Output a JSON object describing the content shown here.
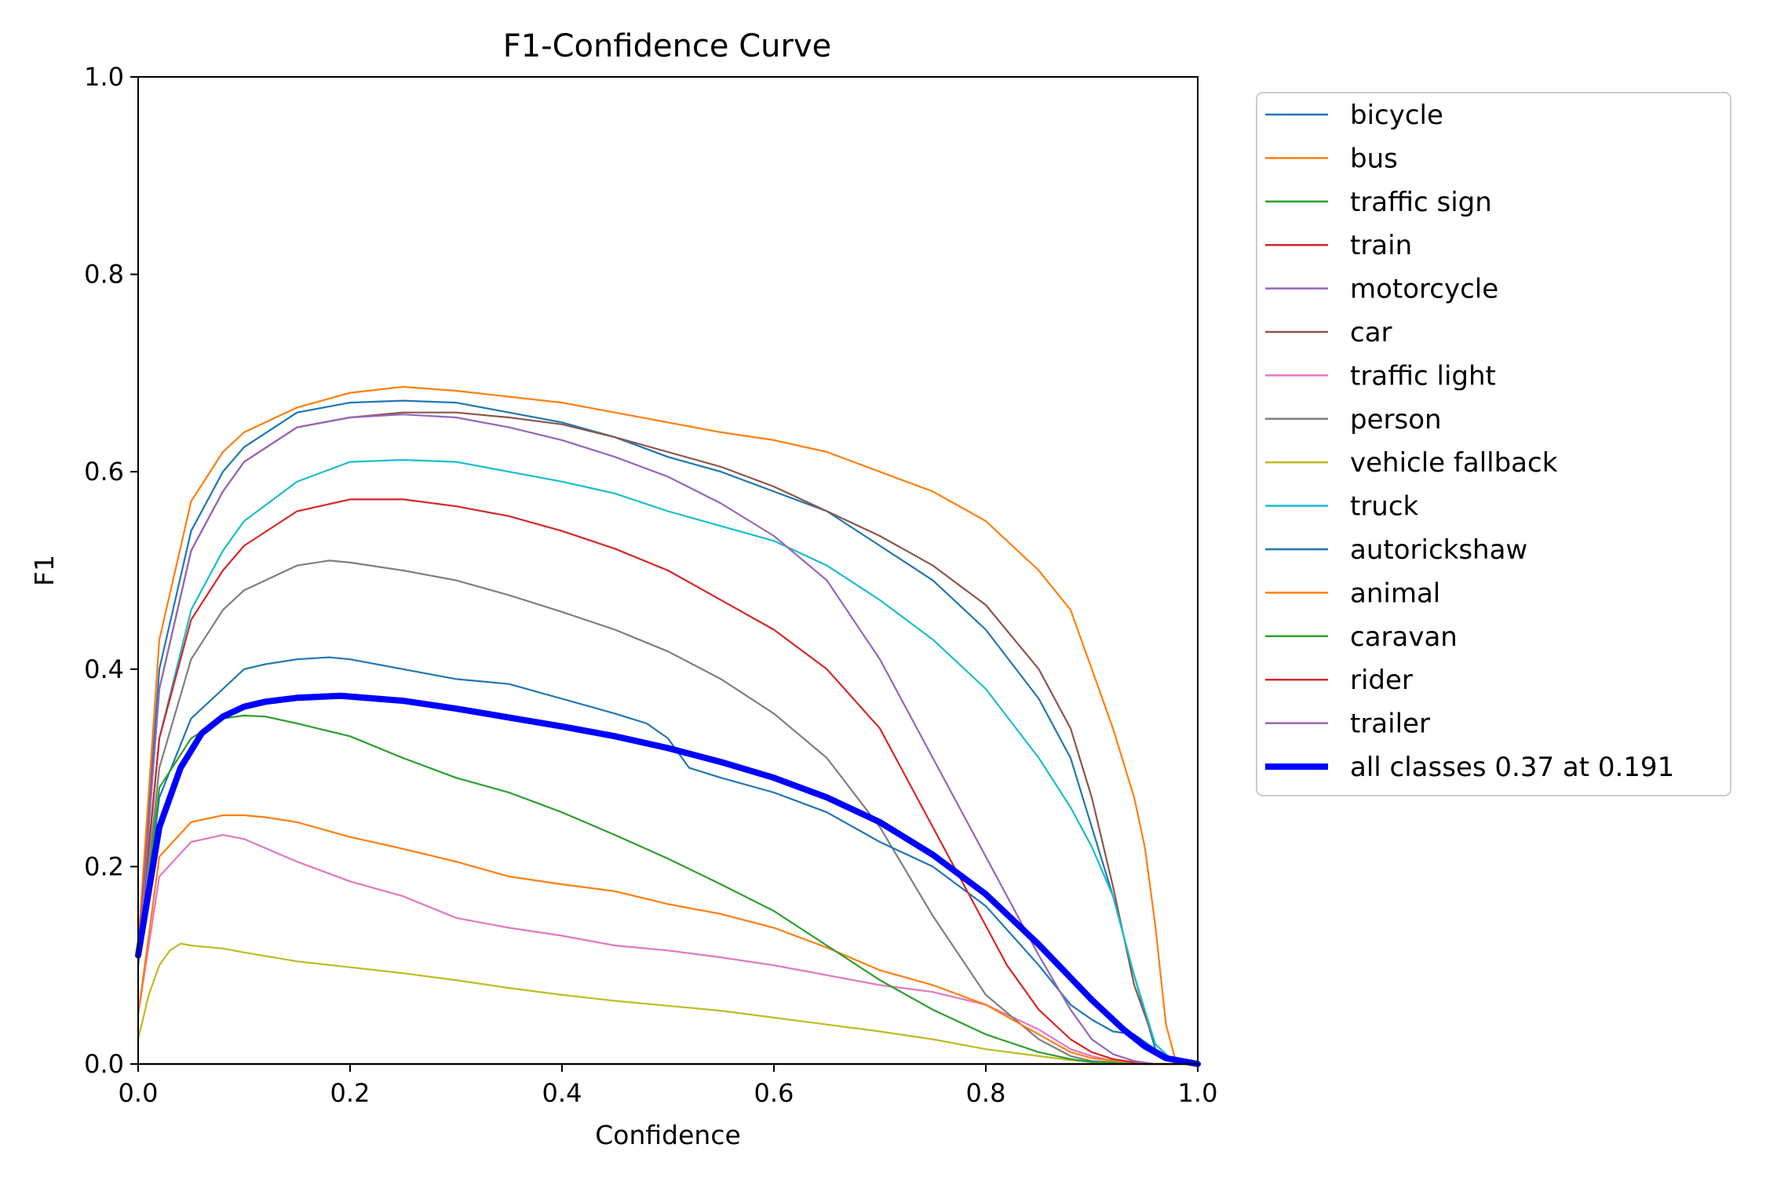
{
  "chart_data": {
    "type": "line",
    "title": "F1-Confidence Curve",
    "xlabel": "Confidence",
    "ylabel": "F1",
    "xlim": [
      0.0,
      1.0
    ],
    "ylim": [
      0.0,
      1.0
    ],
    "xticks": [
      "0.0",
      "0.2",
      "0.4",
      "0.6",
      "0.8",
      "1.0"
    ],
    "yticks": [
      "0.0",
      "0.2",
      "0.4",
      "0.6",
      "0.8",
      "1.0"
    ],
    "grid": false,
    "legend_position": "outside-top-right",
    "series": [
      {
        "name": "bicycle",
        "color": "#1f77b4",
        "width": 1,
        "x": [
          0.0,
          0.02,
          0.05,
          0.08,
          0.1,
          0.15,
          0.2,
          0.25,
          0.3,
          0.35,
          0.4,
          0.45,
          0.5,
          0.55,
          0.6,
          0.65,
          0.7,
          0.75,
          0.8,
          0.85,
          0.88,
          0.9,
          0.92,
          0.94,
          0.96,
          0.98,
          1.0
        ],
        "y": [
          0.11,
          0.4,
          0.54,
          0.6,
          0.625,
          0.66,
          0.67,
          0.672,
          0.67,
          0.66,
          0.65,
          0.635,
          0.615,
          0.6,
          0.58,
          0.56,
          0.525,
          0.49,
          0.44,
          0.37,
          0.31,
          0.24,
          0.17,
          0.09,
          0.015,
          0.0,
          0.0
        ]
      },
      {
        "name": "bus",
        "color": "#ff7f0e",
        "width": 1,
        "x": [
          0.0,
          0.02,
          0.05,
          0.08,
          0.1,
          0.15,
          0.2,
          0.25,
          0.3,
          0.35,
          0.4,
          0.45,
          0.5,
          0.55,
          0.6,
          0.65,
          0.7,
          0.75,
          0.8,
          0.85,
          0.88,
          0.9,
          0.92,
          0.94,
          0.95,
          0.96,
          0.97,
          0.98,
          1.0
        ],
        "y": [
          0.12,
          0.43,
          0.57,
          0.62,
          0.64,
          0.665,
          0.68,
          0.686,
          0.682,
          0.676,
          0.67,
          0.66,
          0.65,
          0.64,
          0.632,
          0.62,
          0.6,
          0.58,
          0.55,
          0.5,
          0.46,
          0.4,
          0.34,
          0.27,
          0.22,
          0.14,
          0.04,
          0.0,
          0.0
        ]
      },
      {
        "name": "traffic sign",
        "color": "#2ca02c",
        "width": 1,
        "x": [
          0.0,
          1.0
        ],
        "y": [
          0.0,
          0.0
        ]
      },
      {
        "name": "train",
        "color": "#d62728",
        "width": 1,
        "x": [
          0.0,
          1.0
        ],
        "y": [
          0.0,
          0.0
        ]
      },
      {
        "name": "motorcycle",
        "color": "#9467bd",
        "width": 1,
        "x": [
          0.0,
          1.0
        ],
        "y": [
          0.0,
          0.0
        ]
      },
      {
        "name": "car",
        "color": "#8c564b",
        "width": 1,
        "x": [
          0.0,
          0.02,
          0.05,
          0.08,
          0.1,
          0.15,
          0.2,
          0.25,
          0.3,
          0.35,
          0.4,
          0.45,
          0.5,
          0.55,
          0.6,
          0.65,
          0.7,
          0.75,
          0.8,
          0.85,
          0.88,
          0.9,
          0.92,
          0.94,
          0.96,
          0.98,
          1.0
        ],
        "y": [
          0.11,
          0.38,
          0.52,
          0.58,
          0.61,
          0.645,
          0.655,
          0.66,
          0.66,
          0.655,
          0.648,
          0.635,
          0.62,
          0.605,
          0.585,
          0.56,
          0.535,
          0.505,
          0.465,
          0.4,
          0.34,
          0.27,
          0.18,
          0.08,
          0.02,
          0.0,
          0.0
        ]
      },
      {
        "name": "traffic light",
        "color": "#e377c2",
        "width": 1,
        "x": [
          0.0,
          0.02,
          0.05,
          0.08,
          0.1,
          0.15,
          0.2,
          0.25,
          0.3,
          0.35,
          0.4,
          0.45,
          0.5,
          0.55,
          0.6,
          0.65,
          0.7,
          0.75,
          0.8,
          0.85,
          0.88,
          0.9,
          0.92,
          0.95,
          1.0
        ],
        "y": [
          0.05,
          0.19,
          0.225,
          0.232,
          0.228,
          0.205,
          0.185,
          0.17,
          0.148,
          0.138,
          0.13,
          0.12,
          0.115,
          0.108,
          0.1,
          0.09,
          0.08,
          0.073,
          0.06,
          0.035,
          0.015,
          0.008,
          0.003,
          0.0,
          0.0
        ]
      },
      {
        "name": "person",
        "color": "#7f7f7f",
        "width": 1,
        "x": [
          0.0,
          0.02,
          0.05,
          0.08,
          0.1,
          0.15,
          0.18,
          0.2,
          0.25,
          0.3,
          0.35,
          0.4,
          0.45,
          0.5,
          0.55,
          0.6,
          0.65,
          0.7,
          0.75,
          0.8,
          0.85,
          0.88,
          0.9,
          0.95,
          1.0
        ],
        "y": [
          0.1,
          0.3,
          0.41,
          0.46,
          0.48,
          0.505,
          0.51,
          0.508,
          0.5,
          0.49,
          0.475,
          0.458,
          0.44,
          0.418,
          0.39,
          0.355,
          0.31,
          0.24,
          0.15,
          0.07,
          0.025,
          0.008,
          0.003,
          0.0,
          0.0
        ]
      },
      {
        "name": "vehicle fallback",
        "color": "#bcbd22",
        "width": 1,
        "x": [
          0.0,
          0.01,
          0.02,
          0.03,
          0.04,
          0.05,
          0.08,
          0.1,
          0.15,
          0.2,
          0.25,
          0.3,
          0.35,
          0.4,
          0.45,
          0.5,
          0.55,
          0.6,
          0.65,
          0.7,
          0.75,
          0.8,
          0.85,
          0.88,
          0.9,
          0.95,
          1.0
        ],
        "y": [
          0.025,
          0.07,
          0.1,
          0.115,
          0.122,
          0.12,
          0.117,
          0.113,
          0.104,
          0.098,
          0.092,
          0.085,
          0.077,
          0.07,
          0.064,
          0.059,
          0.054,
          0.047,
          0.04,
          0.033,
          0.025,
          0.015,
          0.008,
          0.004,
          0.002,
          0.0,
          0.0
        ]
      },
      {
        "name": "truck",
        "color": "#17becf",
        "width": 1,
        "x": [
          0.0,
          0.02,
          0.05,
          0.08,
          0.1,
          0.15,
          0.2,
          0.25,
          0.3,
          0.35,
          0.4,
          0.45,
          0.5,
          0.55,
          0.6,
          0.65,
          0.7,
          0.75,
          0.8,
          0.85,
          0.88,
          0.9,
          0.92,
          0.94,
          0.96,
          0.98,
          1.0
        ],
        "y": [
          0.1,
          0.33,
          0.46,
          0.52,
          0.55,
          0.59,
          0.61,
          0.612,
          0.61,
          0.6,
          0.59,
          0.578,
          0.56,
          0.545,
          0.53,
          0.505,
          0.47,
          0.43,
          0.38,
          0.31,
          0.26,
          0.22,
          0.17,
          0.09,
          0.02,
          0.0,
          0.0
        ]
      },
      {
        "name": "autorickshaw",
        "color": "#1f77b4",
        "width": 1,
        "x": [
          0.0,
          0.02,
          0.05,
          0.08,
          0.1,
          0.12,
          0.15,
          0.18,
          0.2,
          0.25,
          0.3,
          0.35,
          0.4,
          0.45,
          0.48,
          0.5,
          0.52,
          0.55,
          0.6,
          0.65,
          0.7,
          0.75,
          0.8,
          0.85,
          0.88,
          0.9,
          0.92,
          0.94,
          0.96,
          0.98,
          1.0
        ],
        "y": [
          0.1,
          0.27,
          0.35,
          0.38,
          0.4,
          0.405,
          0.41,
          0.412,
          0.41,
          0.4,
          0.39,
          0.385,
          0.37,
          0.355,
          0.345,
          0.33,
          0.3,
          0.29,
          0.275,
          0.255,
          0.225,
          0.2,
          0.16,
          0.1,
          0.06,
          0.045,
          0.033,
          0.03,
          0.015,
          0.003,
          0.0
        ]
      },
      {
        "name": "animal",
        "color": "#ff7f0e",
        "width": 1,
        "x": [
          0.0,
          0.02,
          0.05,
          0.08,
          0.1,
          0.12,
          0.15,
          0.2,
          0.25,
          0.3,
          0.35,
          0.4,
          0.45,
          0.5,
          0.55,
          0.6,
          0.65,
          0.7,
          0.75,
          0.8,
          0.85,
          0.88,
          0.9,
          0.95,
          1.0
        ],
        "y": [
          0.05,
          0.21,
          0.245,
          0.252,
          0.252,
          0.25,
          0.245,
          0.23,
          0.218,
          0.205,
          0.19,
          0.182,
          0.175,
          0.162,
          0.152,
          0.138,
          0.118,
          0.095,
          0.08,
          0.06,
          0.03,
          0.012,
          0.006,
          0.0,
          0.0
        ]
      },
      {
        "name": "caravan",
        "color": "#2ca02c",
        "width": 1,
        "x": [
          0.0,
          0.02,
          0.05,
          0.08,
          0.1,
          0.12,
          0.15,
          0.2,
          0.25,
          0.3,
          0.35,
          0.4,
          0.45,
          0.5,
          0.55,
          0.6,
          0.65,
          0.7,
          0.75,
          0.8,
          0.85,
          0.88,
          0.9,
          0.95,
          1.0
        ],
        "y": [
          0.1,
          0.28,
          0.33,
          0.35,
          0.353,
          0.352,
          0.345,
          0.332,
          0.31,
          0.29,
          0.275,
          0.255,
          0.232,
          0.208,
          0.182,
          0.155,
          0.12,
          0.085,
          0.055,
          0.03,
          0.012,
          0.005,
          0.002,
          0.0,
          0.0
        ]
      },
      {
        "name": "rider",
        "color": "#d62728",
        "width": 1,
        "x": [
          0.0,
          0.02,
          0.05,
          0.08,
          0.1,
          0.15,
          0.2,
          0.25,
          0.3,
          0.35,
          0.4,
          0.45,
          0.5,
          0.55,
          0.6,
          0.65,
          0.7,
          0.72,
          0.75,
          0.78,
          0.8,
          0.82,
          0.85,
          0.88,
          0.9,
          0.92,
          0.95,
          1.0
        ],
        "y": [
          0.11,
          0.33,
          0.45,
          0.5,
          0.525,
          0.56,
          0.572,
          0.572,
          0.565,
          0.555,
          0.54,
          0.522,
          0.5,
          0.47,
          0.44,
          0.4,
          0.34,
          0.3,
          0.24,
          0.18,
          0.14,
          0.1,
          0.055,
          0.025,
          0.012,
          0.005,
          0.0,
          0.0
        ]
      },
      {
        "name": "trailer",
        "color": "#9467bd",
        "width": 1,
        "x": [
          0.0,
          0.02,
          0.05,
          0.08,
          0.1,
          0.15,
          0.2,
          0.25,
          0.3,
          0.35,
          0.4,
          0.45,
          0.5,
          0.55,
          0.6,
          0.65,
          0.7,
          0.75,
          0.78,
          0.8,
          0.82,
          0.85,
          0.88,
          0.9,
          0.92,
          0.94,
          0.96,
          1.0
        ],
        "y": [
          0.1,
          0.38,
          0.52,
          0.58,
          0.61,
          0.645,
          0.655,
          0.658,
          0.655,
          0.645,
          0.632,
          0.615,
          0.595,
          0.568,
          0.535,
          0.49,
          0.41,
          0.31,
          0.25,
          0.21,
          0.17,
          0.11,
          0.055,
          0.025,
          0.01,
          0.003,
          0.0,
          0.0
        ]
      },
      {
        "name": "all classes 0.37 at 0.191",
        "color": "#0000ff",
        "width": 3.5,
        "x": [
          0.0,
          0.02,
          0.04,
          0.06,
          0.08,
          0.1,
          0.12,
          0.15,
          0.191,
          0.25,
          0.3,
          0.35,
          0.4,
          0.45,
          0.5,
          0.55,
          0.6,
          0.65,
          0.7,
          0.75,
          0.8,
          0.85,
          0.9,
          0.93,
          0.95,
          0.97,
          1.0
        ],
        "y": [
          0.11,
          0.24,
          0.3,
          0.335,
          0.352,
          0.362,
          0.367,
          0.371,
          0.373,
          0.368,
          0.36,
          0.351,
          0.342,
          0.332,
          0.32,
          0.306,
          0.29,
          0.27,
          0.245,
          0.212,
          0.172,
          0.121,
          0.065,
          0.035,
          0.018,
          0.006,
          0.0
        ]
      }
    ]
  }
}
